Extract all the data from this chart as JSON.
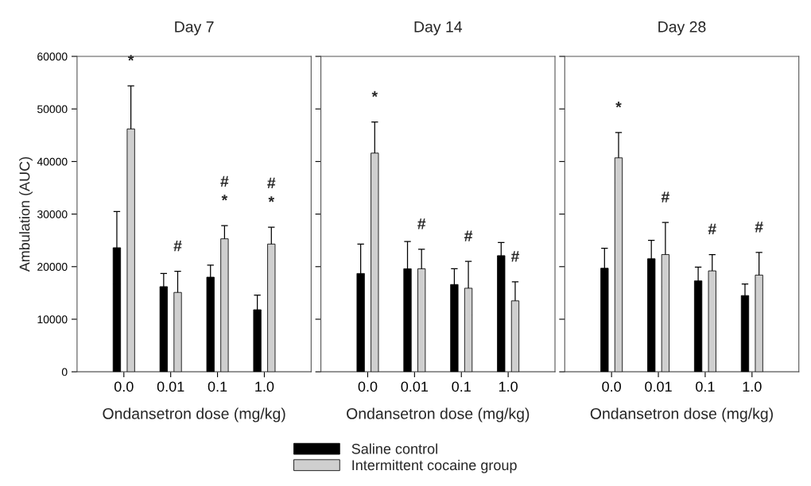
{
  "chart_data": [
    {
      "type": "bar",
      "title": "Day 7",
      "xlabel": "Ondansetron dose (mg/kg)",
      "ylabel": "Ambulation (AUC)",
      "categories": [
        "0.0",
        "0.01",
        "0.1",
        "1.0"
      ],
      "ylim": [
        0,
        60000
      ],
      "yticks": [
        0,
        10000,
        20000,
        30000,
        40000,
        50000,
        60000
      ],
      "legend": "bottom",
      "series": [
        {
          "name": "Saline control",
          "color": "#000000",
          "values": [
            23600,
            16200,
            18000,
            11800
          ],
          "errors": [
            6900,
            2500,
            2300,
            2800
          ]
        },
        {
          "name": "Intermittent cocaine group",
          "color": "#cfcfcf",
          "values": [
            46200,
            15100,
            25300,
            24300
          ],
          "errors": [
            8200,
            4000,
            2500,
            3200
          ]
        }
      ],
      "annotations": [
        "*",
        "#",
        "#",
        "*",
        "#",
        "*"
      ]
    },
    {
      "type": "bar",
      "title": "Day 14",
      "xlabel": "Ondansetron dose (mg/kg)",
      "categories": [
        "0.0",
        "0.01",
        "0.1",
        "1.0"
      ],
      "ylim": [
        0,
        60000
      ],
      "yticks": [
        0,
        10000,
        20000,
        30000,
        40000,
        50000,
        60000
      ],
      "tick_labels": "x",
      "series": [
        {
          "color": "#000000",
          "values": [
            18700,
            19600,
            16600,
            22100
          ],
          "errors": [
            5600,
            5200,
            3000,
            2500
          ]
        },
        {
          "color": "#cfcfcf",
          "values": [
            41600,
            19600,
            15900,
            13500
          ],
          "errors": [
            5900,
            3700,
            5100,
            3600
          ]
        }
      ],
      "annotations": [
        "*",
        "#",
        "#",
        "#"
      ]
    },
    {
      "type": "bar",
      "title": "Day 28",
      "xlabel": "Ondansetron dose (mg/kg)",
      "categories": [
        "0.0",
        "0.01",
        "0.1",
        "1.0"
      ],
      "ylim": [
        0,
        60000
      ],
      "yticks": [
        0,
        10000,
        20000,
        30000,
        40000,
        50000,
        60000
      ],
      "tick_labels": "x",
      "series": [
        {
          "color": "#000000",
          "values": [
            19700,
            21500,
            17300,
            14500
          ],
          "errors": [
            3800,
            3500,
            2600,
            2200
          ]
        },
        {
          "color": "#cfcfcf",
          "values": [
            40700,
            22300,
            19200,
            18400
          ],
          "errors": [
            4800,
            6100,
            3100,
            4300
          ]
        }
      ],
      "annotations": [
        "*",
        "#",
        "#",
        "#"
      ]
    }
  ]
}
